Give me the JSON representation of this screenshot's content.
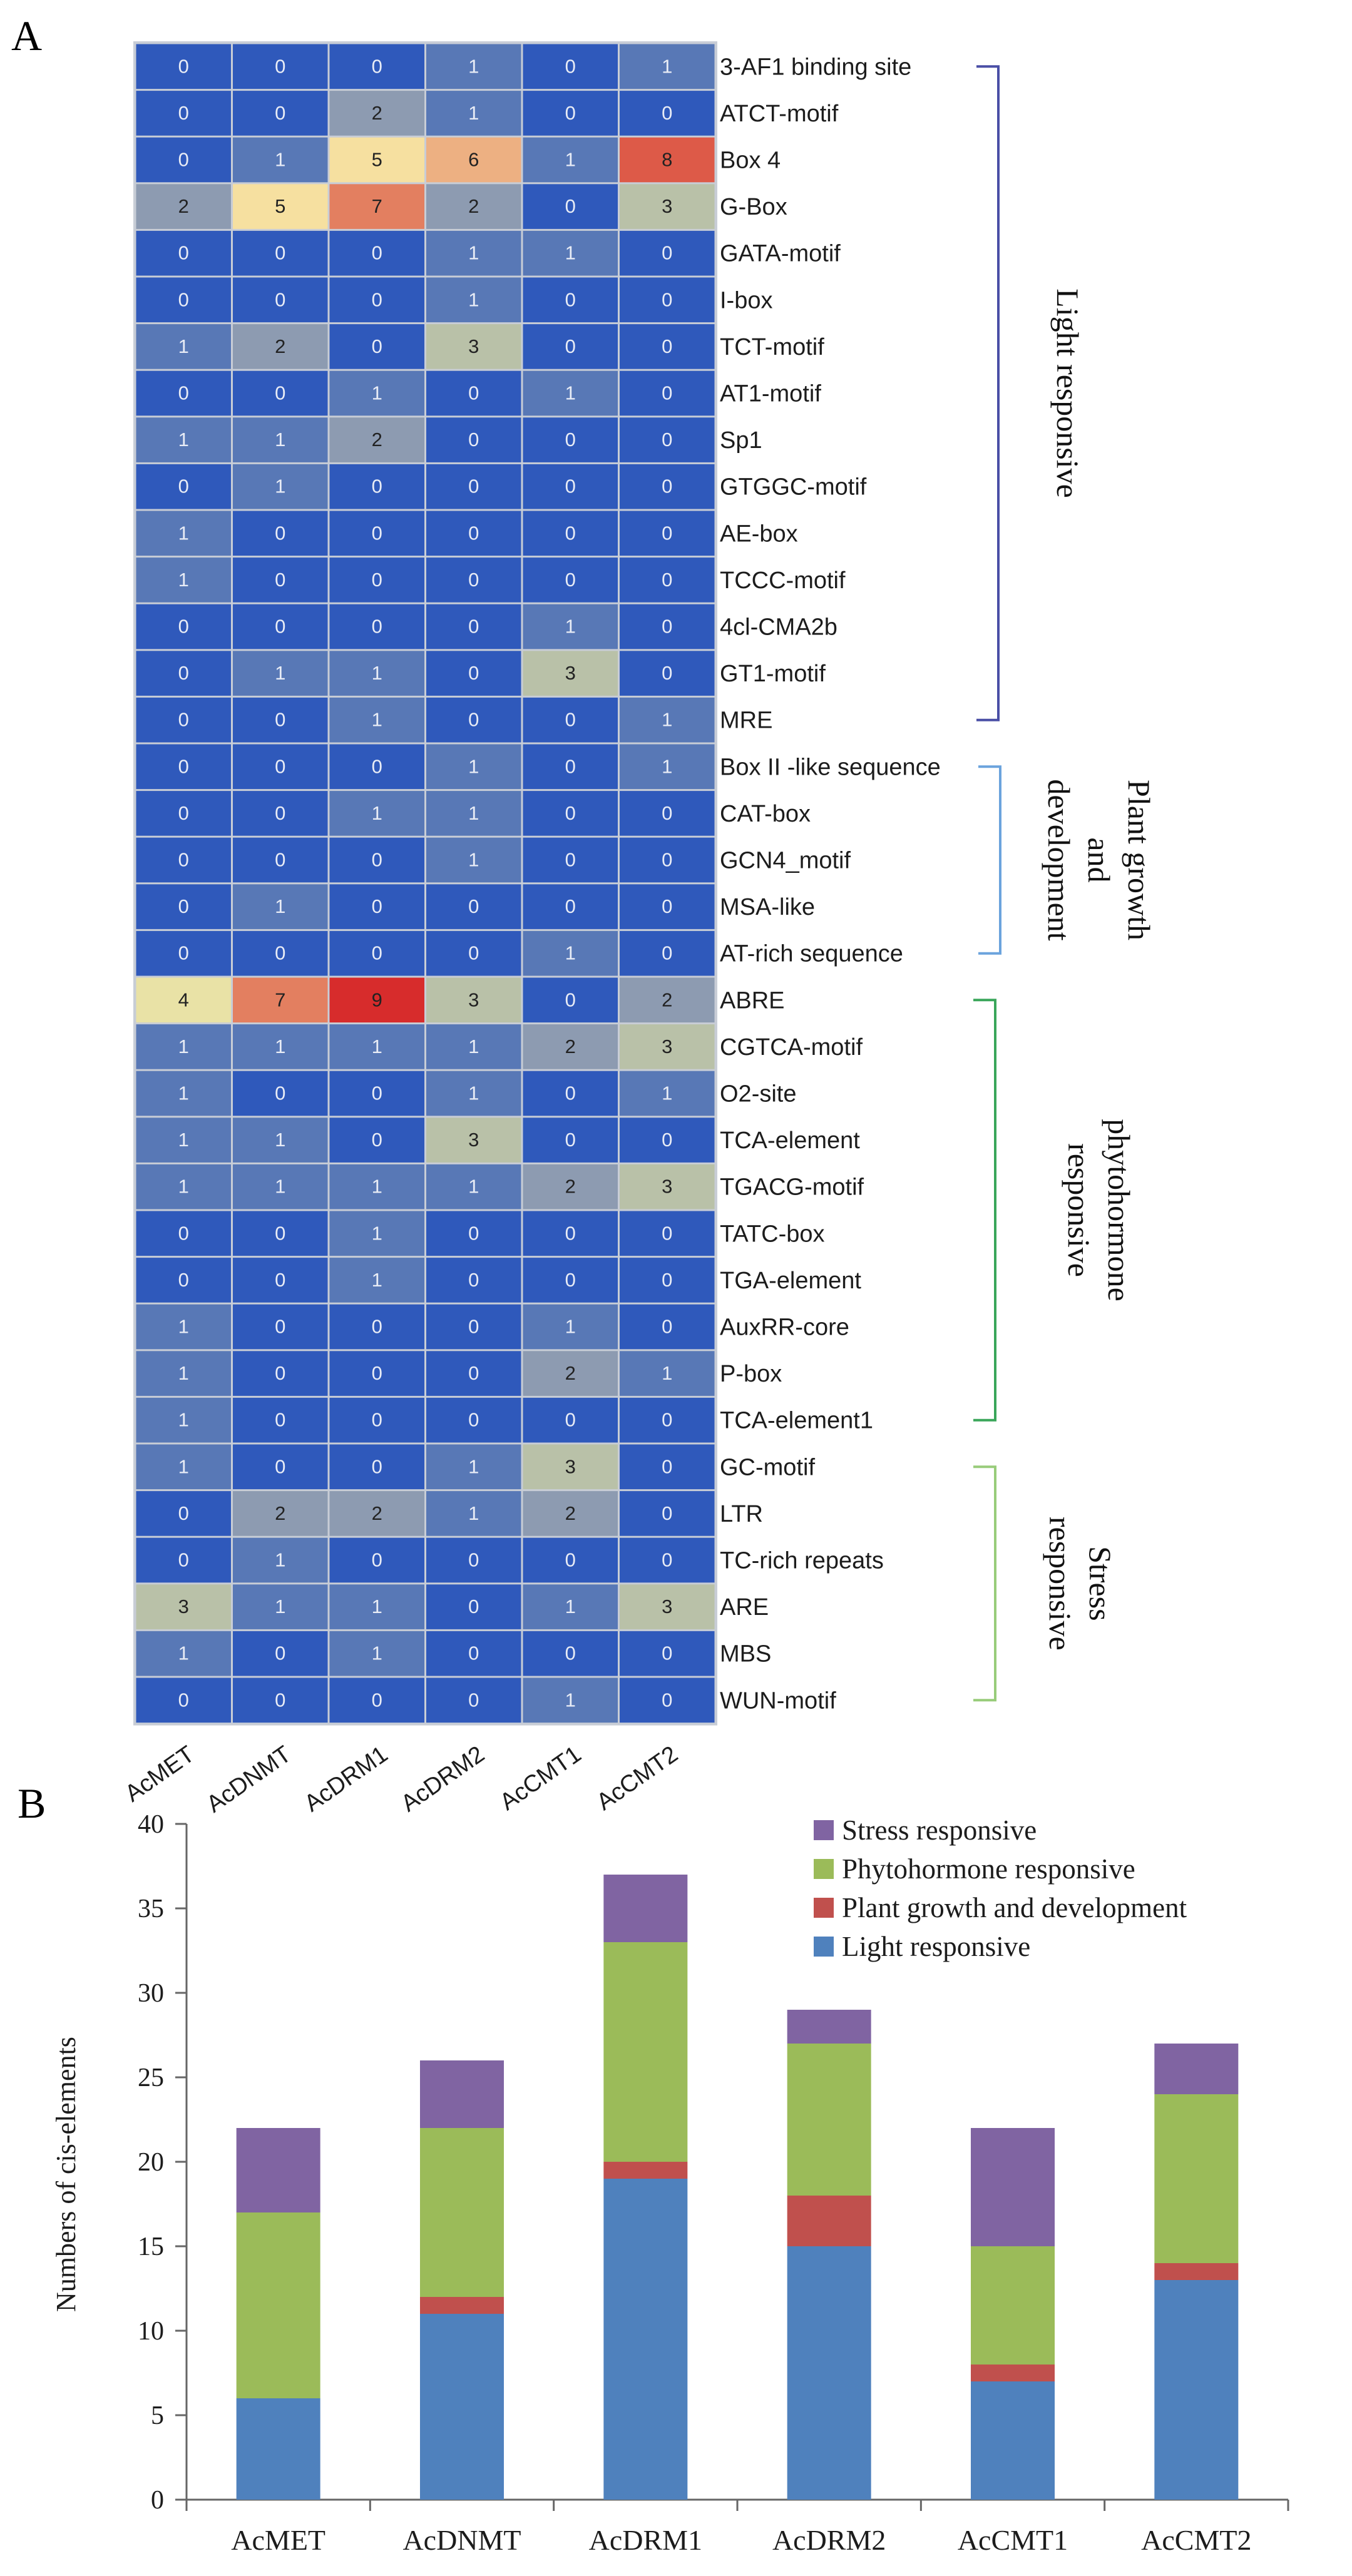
{
  "panel_a_label": "A",
  "panel_b_label": "B",
  "chart_data": [
    {
      "type": "heatmap",
      "title": "",
      "columns": [
        "AcMET",
        "AcDNMT",
        "AcDRM1",
        "AcDRM2",
        "AcCMT1",
        "AcCMT2"
      ],
      "rows": [
        "3-AF1 binding site",
        "ATCT-motif",
        "Box 4",
        "G-Box",
        "GATA-motif",
        "I-box",
        "TCT-motif",
        "AT1-motif",
        "Sp1",
        "GTGGC-motif",
        "AE-box",
        "TCCC-motif",
        "4cl-CMA2b",
        "GT1-motif",
        "MRE",
        "Box II -like sequence",
        "CAT-box",
        "GCN4_motif",
        "MSA-like",
        "AT-rich sequence",
        "ABRE",
        "CGTCA-motif",
        "O2-site",
        "TCA-element",
        "TGACG-motif",
        "TATC-box",
        "TGA-element",
        "AuxRR-core",
        "P-box",
        "TCA-element1",
        "GC-motif",
        "LTR",
        "TC-rich repeats",
        "ARE",
        "MBS",
        "WUN-motif"
      ],
      "values": [
        [
          0,
          0,
          0,
          1,
          0,
          1
        ],
        [
          0,
          0,
          2,
          1,
          0,
          0
        ],
        [
          0,
          1,
          5,
          6,
          1,
          8
        ],
        [
          2,
          5,
          7,
          2,
          0,
          3
        ],
        [
          0,
          0,
          0,
          1,
          1,
          0
        ],
        [
          0,
          0,
          0,
          1,
          0,
          0
        ],
        [
          1,
          2,
          0,
          3,
          0,
          0
        ],
        [
          0,
          0,
          1,
          0,
          1,
          0
        ],
        [
          1,
          1,
          2,
          0,
          0,
          0
        ],
        [
          0,
          1,
          0,
          0,
          0,
          0
        ],
        [
          1,
          0,
          0,
          0,
          0,
          0
        ],
        [
          1,
          0,
          0,
          0,
          0,
          0
        ],
        [
          0,
          0,
          0,
          0,
          1,
          0
        ],
        [
          0,
          1,
          1,
          0,
          3,
          0
        ],
        [
          0,
          0,
          1,
          0,
          0,
          1
        ],
        [
          0,
          0,
          0,
          1,
          0,
          1
        ],
        [
          0,
          0,
          1,
          1,
          0,
          0
        ],
        [
          0,
          0,
          0,
          1,
          0,
          0
        ],
        [
          0,
          1,
          0,
          0,
          0,
          0
        ],
        [
          0,
          0,
          0,
          0,
          1,
          0
        ],
        [
          4,
          7,
          9,
          3,
          0,
          2
        ],
        [
          1,
          1,
          1,
          1,
          2,
          3
        ],
        [
          1,
          0,
          0,
          1,
          0,
          1
        ],
        [
          1,
          1,
          0,
          3,
          0,
          0
        ],
        [
          1,
          1,
          1,
          1,
          2,
          3
        ],
        [
          0,
          0,
          1,
          0,
          0,
          0
        ],
        [
          0,
          0,
          1,
          0,
          0,
          0
        ],
        [
          1,
          0,
          0,
          0,
          1,
          0
        ],
        [
          1,
          0,
          0,
          0,
          2,
          1
        ],
        [
          1,
          0,
          0,
          0,
          0,
          0
        ],
        [
          1,
          0,
          0,
          1,
          3,
          0
        ],
        [
          0,
          2,
          2,
          1,
          2,
          0
        ],
        [
          0,
          1,
          0,
          0,
          0,
          0
        ],
        [
          3,
          1,
          1,
          0,
          1,
          3
        ],
        [
          1,
          0,
          1,
          0,
          0,
          0
        ],
        [
          0,
          0,
          0,
          0,
          1,
          0
        ]
      ],
      "color_scale": [
        {
          "value": 0,
          "color": "#2f59bb"
        },
        {
          "value": 1,
          "color": "#5878b6"
        },
        {
          "value": 2,
          "color": "#8d9bb1"
        },
        {
          "value": 3,
          "color": "#b9c1a8"
        },
        {
          "value": 4,
          "color": "#e9e2a6"
        },
        {
          "value": 5,
          "color": "#f6e0a0"
        },
        {
          "value": 6,
          "color": "#edb082"
        },
        {
          "value": 7,
          "color": "#e37f60"
        },
        {
          "value": 8,
          "color": "#dd5a48"
        },
        {
          "value": 9,
          "color": "#d72c2c"
        }
      ],
      "groups": [
        {
          "label_lines": [
            "Light responsive"
          ],
          "start": 0,
          "end": 14,
          "color": "#4a4fa6"
        },
        {
          "label_lines": [
            "Plant growth",
            "and",
            "development"
          ],
          "start": 15,
          "end": 19,
          "color": "#6ba3dd"
        },
        {
          "label_lines": [
            "phytohormone",
            "responsive"
          ],
          "start": 20,
          "end": 29,
          "color": "#3aa65a"
        },
        {
          "label_lines": [
            "Stress",
            "responsive"
          ],
          "start": 30,
          "end": 35,
          "color": "#98cc7a"
        }
      ]
    },
    {
      "type": "bar",
      "stacked": true,
      "title": "",
      "xlabel": "",
      "ylabel": "Numbers of cis-elements",
      "ylim": [
        0,
        40
      ],
      "yticks": [
        0,
        5,
        10,
        15,
        20,
        25,
        30,
        35,
        40
      ],
      "categories": [
        "AcMET",
        "AcDNMT",
        "AcDRM1",
        "AcDRM2",
        "AcCMT1",
        "AcCMT2"
      ],
      "series": [
        {
          "name": "Light responsive",
          "color": "#4f81bd",
          "values": [
            6,
            11,
            19,
            15,
            7,
            13
          ]
        },
        {
          "name": "Plant growth and development",
          "color": "#c0504d",
          "values": [
            0,
            1,
            1,
            3,
            1,
            1
          ]
        },
        {
          "name": "Phytohormone responsive",
          "color": "#9bbb59",
          "values": [
            11,
            10,
            13,
            9,
            7,
            10
          ]
        },
        {
          "name": "Stress  responsive",
          "color": "#8064a2",
          "values": [
            5,
            4,
            4,
            2,
            7,
            3
          ]
        }
      ],
      "legend": {
        "position": "top-right",
        "order": [
          "Stress  responsive",
          "Phytohormone responsive",
          "Plant growth and development",
          "Light responsive"
        ]
      }
    }
  ]
}
